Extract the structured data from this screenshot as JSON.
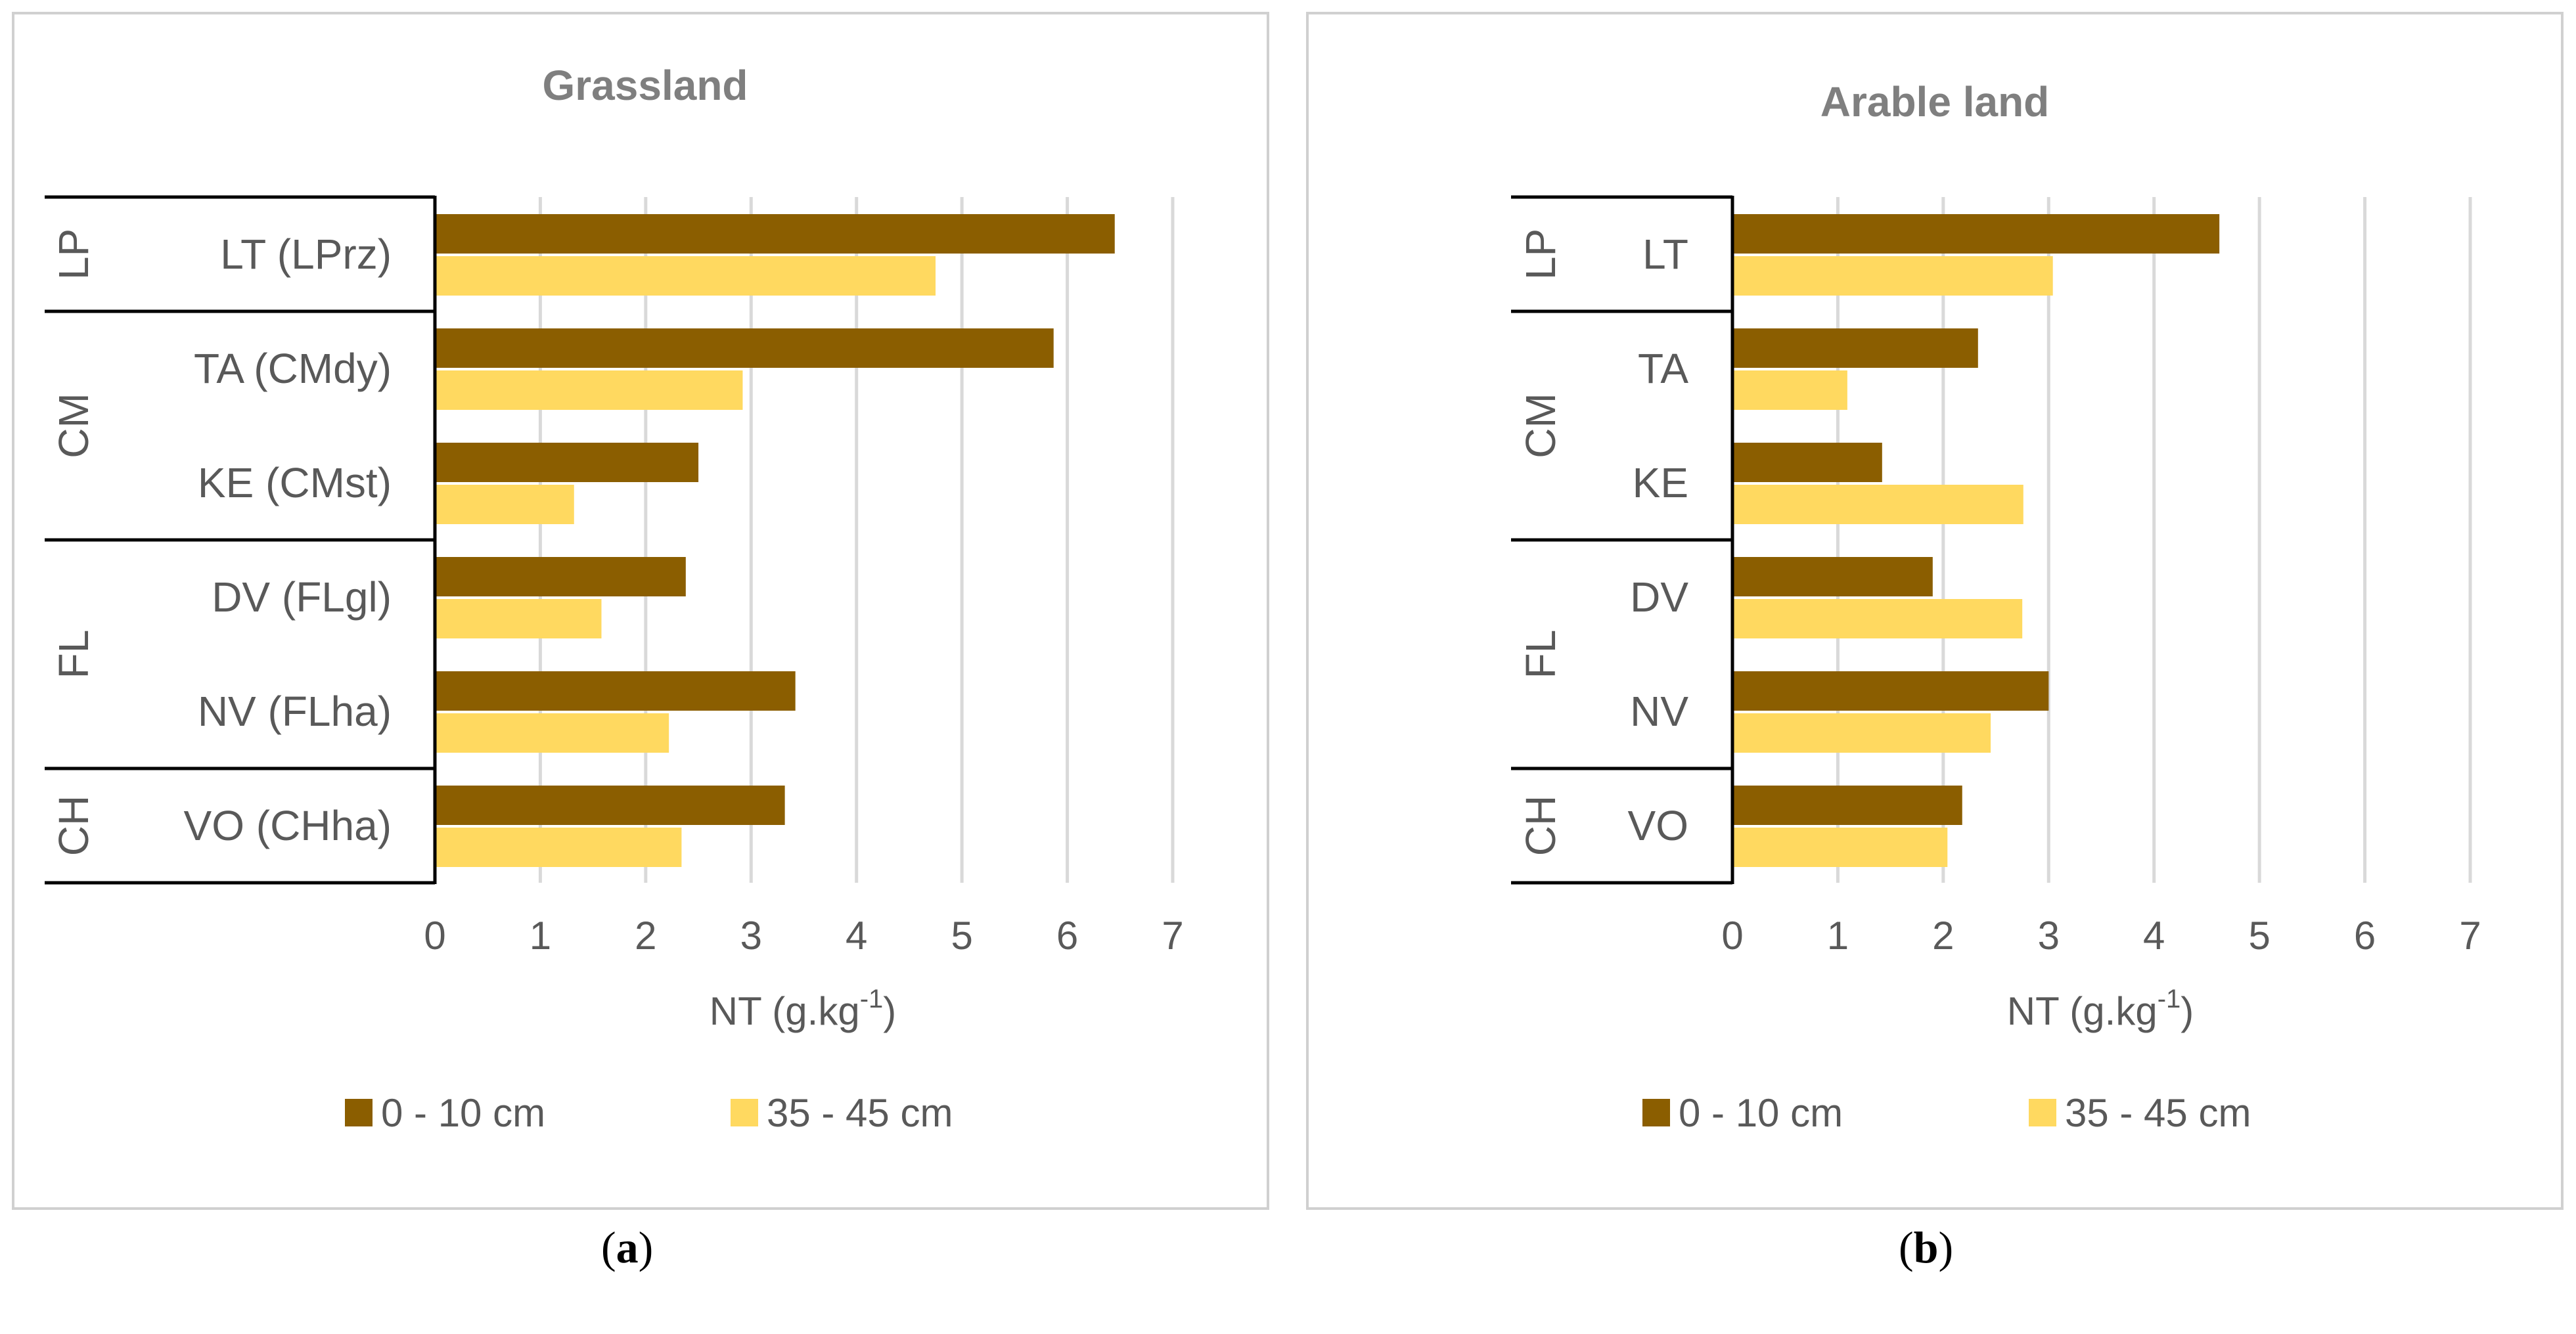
{
  "chart_data": [
    {
      "type": "bar",
      "orientation": "horizontal",
      "title": "Grassland",
      "panel_label": "(a)",
      "panel_letter": "a",
      "xlabel": "NT (g.kg",
      "xlabel_sup": "-1",
      "xlabel_end": ")",
      "xlim": [
        0,
        7
      ],
      "xticks": [
        "0",
        "1",
        "2",
        "3",
        "4",
        "5",
        "6",
        "7"
      ],
      "grid": true,
      "legend": "bottom",
      "groups": [
        {
          "name": "LP",
          "categories": [
            "LT (LPrz)"
          ]
        },
        {
          "name": "CM",
          "categories": [
            "TA (CMdy)",
            "KE (CMst)"
          ]
        },
        {
          "name": "FL",
          "categories": [
            "DV (FLgl)",
            "NV (FLha)"
          ]
        },
        {
          "name": "CH",
          "categories": [
            "VO (CHha)"
          ]
        }
      ],
      "categories": [
        "LT (LPrz)",
        "TA (CMdy)",
        "KE (CMst)",
        "DV (FLgl)",
        "NV (FLha)",
        "VO (CHha)"
      ],
      "series": [
        {
          "name": "0 - 10 cm",
          "color": "#8B5E00",
          "values": [
            6.45,
            5.87,
            2.5,
            2.38,
            3.42,
            3.32
          ]
        },
        {
          "name": "35 - 45 cm",
          "color": "#FFD960",
          "values": [
            4.75,
            2.92,
            1.32,
            1.58,
            2.22,
            2.34
          ]
        }
      ]
    },
    {
      "type": "bar",
      "orientation": "horizontal",
      "title": "Arable land",
      "panel_label": "(b)",
      "panel_letter": "b",
      "xlabel": "NT (g.kg",
      "xlabel_sup": "-1",
      "xlabel_end": ")",
      "xlim": [
        0,
        7
      ],
      "xticks": [
        "0",
        "1",
        "2",
        "3",
        "4",
        "5",
        "6",
        "7"
      ],
      "grid": true,
      "legend": "bottom",
      "groups": [
        {
          "name": "LP",
          "categories": [
            "LT"
          ]
        },
        {
          "name": "CM",
          "categories": [
            "TA",
            "KE"
          ]
        },
        {
          "name": "FL",
          "categories": [
            "DV",
            "NV"
          ]
        },
        {
          "name": "CH",
          "categories": [
            "VO"
          ]
        }
      ],
      "categories": [
        "LT",
        "TA",
        "KE",
        "DV",
        "NV",
        "VO"
      ],
      "series": [
        {
          "name": "0 - 10 cm",
          "color": "#8B5E00",
          "values": [
            4.62,
            2.33,
            1.42,
            1.9,
            3.0,
            2.18
          ]
        },
        {
          "name": "35 - 45 cm",
          "color": "#FFD960",
          "values": [
            3.04,
            1.09,
            2.76,
            2.75,
            2.45,
            2.04
          ]
        }
      ]
    }
  ]
}
